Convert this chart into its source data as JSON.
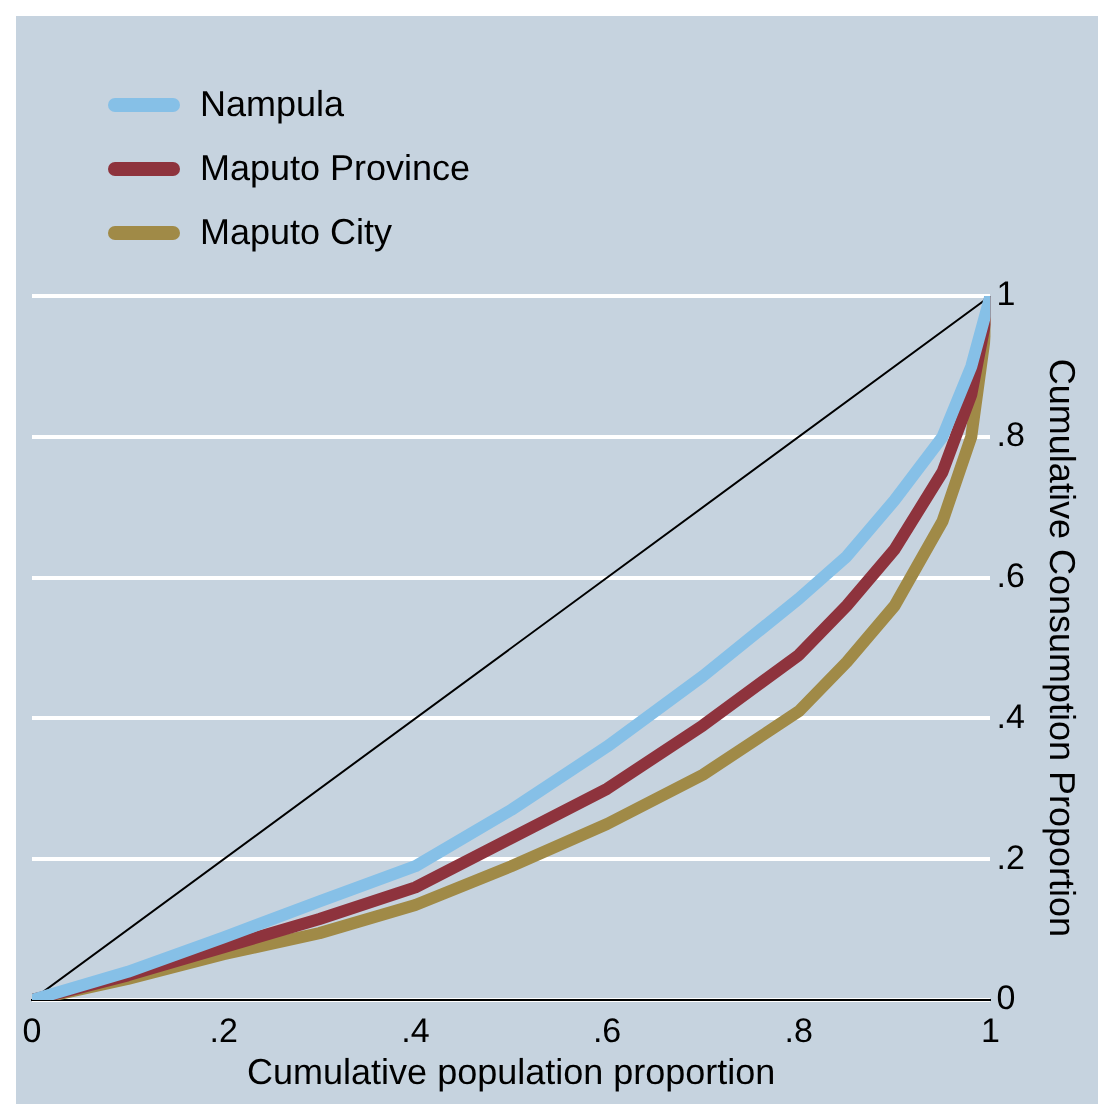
{
  "chart_data": {
    "type": "line",
    "xlabel": "Cumulative population proportion",
    "ylabel": "Cumulative Consumption Proportion",
    "x": [
      0,
      0.1,
      0.2,
      0.3,
      0.4,
      0.5,
      0.6,
      0.7,
      0.8,
      0.85,
      0.9,
      0.95,
      0.98,
      1
    ],
    "series": [
      {
        "name": "Nampula",
        "color": "#86c0e7",
        "values": [
          0,
          0.04,
          0.089,
          0.14,
          0.19,
          0.27,
          0.36,
          0.46,
          0.57,
          0.63,
          0.71,
          0.8,
          0.9,
          1
        ]
      },
      {
        "name": "Maputo Province",
        "color": "#8e333d",
        "values": [
          0,
          0.035,
          0.075,
          0.115,
          0.16,
          0.23,
          0.3,
          0.39,
          0.49,
          0.56,
          0.64,
          0.75,
          0.86,
          1
        ]
      },
      {
        "name": "Maputo City",
        "color": "#a08a47",
        "values": [
          0,
          0.03,
          0.065,
          0.095,
          0.135,
          0.19,
          0.25,
          0.32,
          0.41,
          0.48,
          0.56,
          0.68,
          0.8,
          1
        ]
      },
      {
        "color": "#000000",
        "x": [
          0,
          1
        ],
        "values": [
          0,
          1
        ]
      }
    ],
    "xlim": [
      0,
      1
    ],
    "xticks": [
      0,
      {
        "value": 0.2,
        "label": ".2"
      },
      {
        "value": 0.4,
        "label": ".4"
      },
      {
        "value": 0.6,
        "label": ".6"
      },
      {
        "value": 0.8,
        "label": ".8"
      },
      1
    ],
    "ylim": [
      0,
      1
    ],
    "yticks": [
      0,
      {
        "value": 0.2,
        "label": ".2"
      },
      {
        "value": 0.4,
        "label": ".4"
      },
      {
        "value": 0.6,
        "label": ".6"
      },
      {
        "value": 0.8,
        "label": ".8"
      },
      1
    ],
    "grid": "y",
    "legend": "top left"
  }
}
